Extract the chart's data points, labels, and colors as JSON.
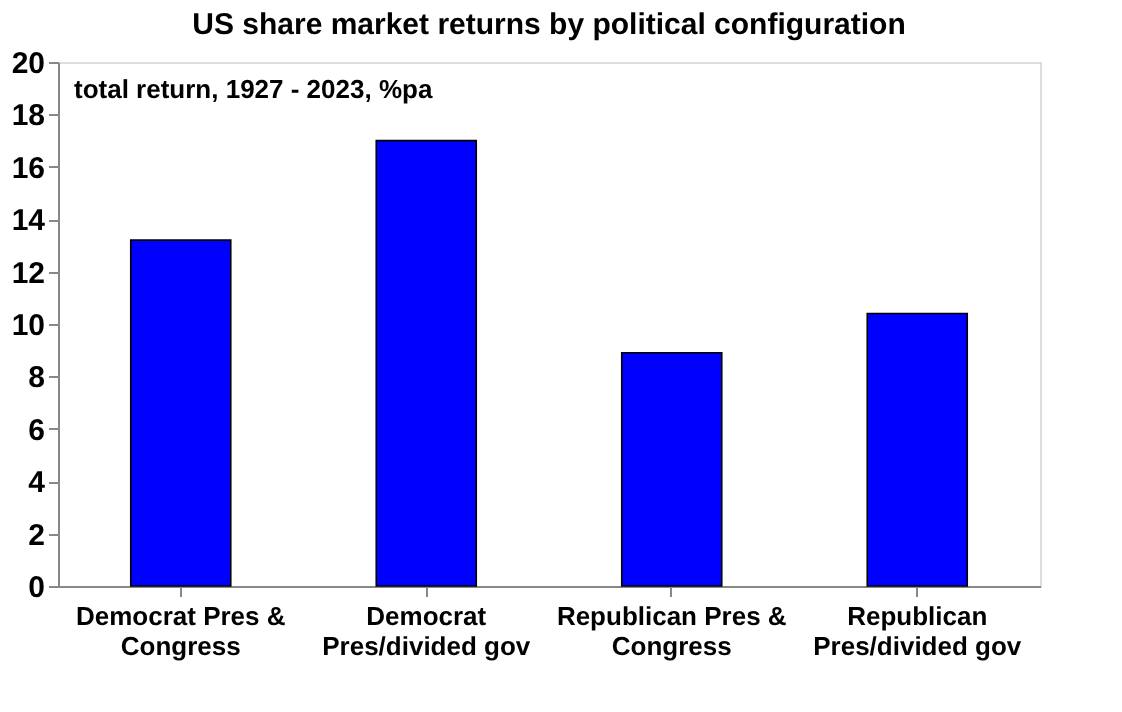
{
  "chart_data": {
    "type": "bar",
    "title": "US share market returns by political configuration",
    "subtitle": "total return, 1927 - 2023, %pa",
    "categories": [
      "Democrat Pres & Congress",
      "Democrat Pres/divided gov",
      "Republican Pres & Congress",
      "Republican Pres/divided gov"
    ],
    "values": [
      13.2,
      17.0,
      8.9,
      10.4
    ],
    "color": "#0000ff",
    "ylim": [
      0,
      20
    ],
    "yticks": [
      0,
      2,
      4,
      6,
      8,
      10,
      12,
      14,
      16,
      18,
      20
    ],
    "grid": false
  }
}
